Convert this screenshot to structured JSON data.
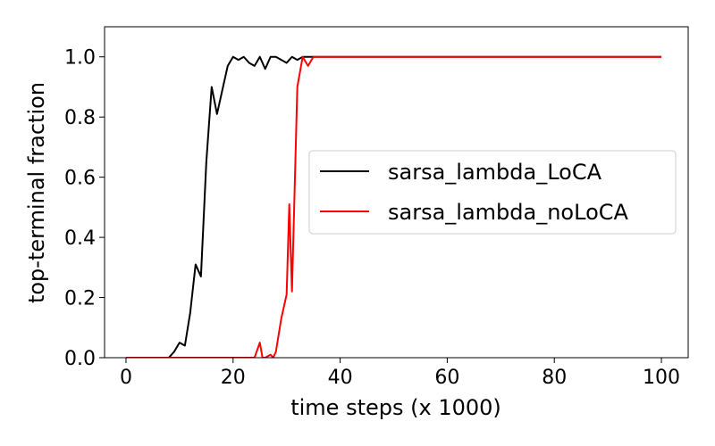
{
  "chart_data": {
    "type": "line",
    "title": "",
    "xlabel": "time steps (x 1000)",
    "ylabel": "top-terminal fraction",
    "xlim": [
      -4,
      105
    ],
    "ylim": [
      0,
      1.1
    ],
    "xticks": [
      0,
      20,
      40,
      60,
      80,
      100
    ],
    "yticks": [
      0.0,
      0.2,
      0.4,
      0.6,
      0.8,
      1.0
    ],
    "xtick_labels": [
      "0",
      "20",
      "40",
      "60",
      "80",
      "100"
    ],
    "ytick_labels": [
      "0.0",
      "0.2",
      "0.4",
      "0.6",
      "0.8",
      "1.0"
    ],
    "grid": false,
    "legend_position": "center-right",
    "series": [
      {
        "name": "sarsa_lambda_LoCA",
        "color": "#000000",
        "x": [
          0,
          1,
          2,
          3,
          4,
          5,
          6,
          7,
          8,
          9,
          10,
          11,
          12,
          13,
          14,
          15,
          16,
          17,
          18,
          19,
          20,
          21,
          22,
          23,
          24,
          25,
          26,
          27,
          28,
          29,
          30,
          31,
          32,
          33,
          34,
          35,
          40,
          50,
          60,
          70,
          80,
          90,
          100
        ],
        "y": [
          0,
          0,
          0,
          0,
          0,
          0,
          0,
          0,
          0,
          0.02,
          0.05,
          0.04,
          0.15,
          0.31,
          0.27,
          0.65,
          0.9,
          0.81,
          0.89,
          0.97,
          1.0,
          0.99,
          1.0,
          0.98,
          0.97,
          1.0,
          0.96,
          1.0,
          1.0,
          0.99,
          0.98,
          1.0,
          0.99,
          1.0,
          1.0,
          1.0,
          1.0,
          1.0,
          1.0,
          1.0,
          1.0,
          1.0,
          1.0
        ]
      },
      {
        "name": "sarsa_lambda_noLoCA",
        "color": "#ff0000",
        "x": [
          0,
          5,
          10,
          15,
          20,
          24,
          25,
          25.5,
          26,
          27,
          27.5,
          28,
          29,
          30,
          30.5,
          31,
          32,
          33,
          34,
          35,
          40,
          50,
          60,
          70,
          80,
          90,
          100
        ],
        "y": [
          0,
          0,
          0,
          0,
          0,
          0,
          0.05,
          0,
          0,
          0.01,
          0,
          0.02,
          0.13,
          0.21,
          0.51,
          0.22,
          0.9,
          1.0,
          0.97,
          1.0,
          1.0,
          1.0,
          1.0,
          1.0,
          1.0,
          1.0,
          1.0
        ]
      }
    ]
  }
}
